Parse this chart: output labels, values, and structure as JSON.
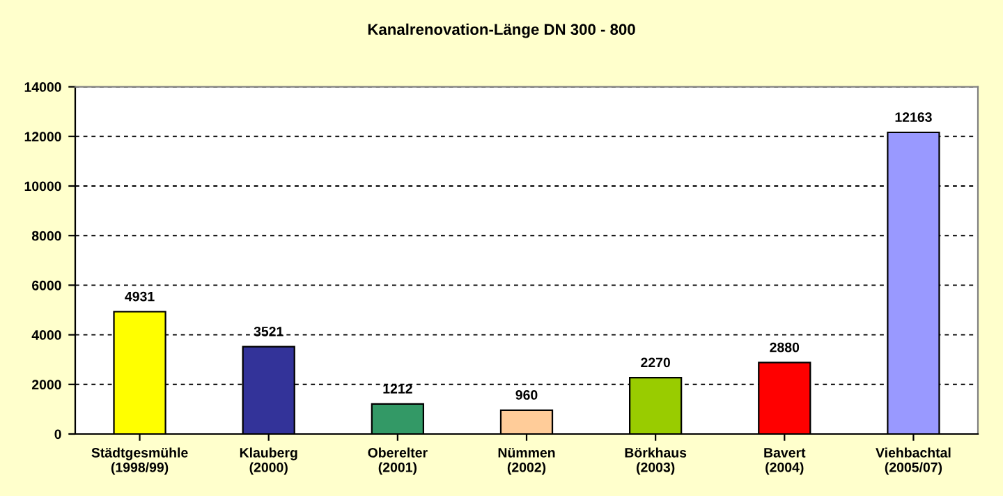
{
  "chart_data": {
    "type": "bar",
    "title": "Kanalrenovation-Länge DN 300 - 800",
    "categories": [
      "Städtgesmühle\n(1998/99)",
      "Klauberg\n(2000)",
      "Oberelter\n(2001)",
      "Nümmen\n(2002)",
      "Börkhaus\n(2003)",
      "Bavert\n(2004)",
      "Viehbachtal\n(2005/07)"
    ],
    "values": [
      4931,
      3521,
      1212,
      960,
      2270,
      2880,
      12163
    ],
    "colors": [
      "#ffff00",
      "#333399",
      "#339966",
      "#ffcc99",
      "#99cc00",
      "#ff0000",
      "#9999ff"
    ],
    "ylim": [
      0,
      14000
    ],
    "yticks": [
      0,
      2000,
      4000,
      6000,
      8000,
      10000,
      12000,
      14000
    ],
    "grid": "y",
    "data_labels": true
  }
}
